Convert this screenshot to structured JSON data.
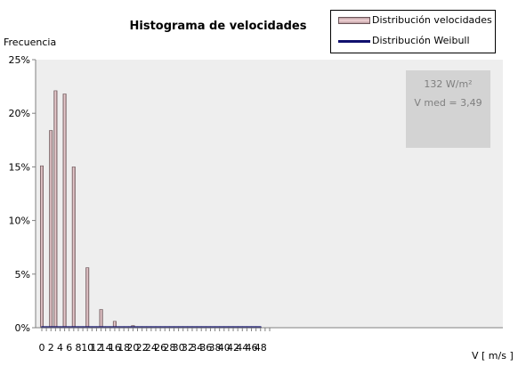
{
  "chart_data": {
    "type": "bar",
    "title": "Histograma de velocidades",
    "xlabel": "V [ m/s ]",
    "ylabel": "Frecuencia",
    "x_ticks": [
      0,
      2,
      4,
      6,
      8,
      10,
      12,
      14,
      16,
      18,
      20,
      22,
      24,
      26,
      28,
      30,
      32,
      34,
      36,
      38,
      40,
      42,
      44,
      46,
      48
    ],
    "y_ticks": [
      "0%",
      "5%",
      "10%",
      "15%",
      "20%",
      "25%"
    ],
    "xlim": [
      -0.5,
      50
    ],
    "ylim": [
      0,
      25
    ],
    "grid": false,
    "legend_position": "top-right",
    "series": [
      {
        "name": "Distribución velocidades",
        "type": "bar",
        "x": [
          0,
          2,
          3,
          5,
          7,
          10,
          13,
          16,
          20
        ],
        "values": [
          15.1,
          18.4,
          22.1,
          21.8,
          15.0,
          5.6,
          1.7,
          0.6,
          0.2
        ]
      },
      {
        "name": "Distribución Weibull",
        "type": "line",
        "x": [
          0,
          1,
          2,
          3,
          4,
          5,
          6,
          7,
          8,
          9,
          10,
          11,
          12,
          13,
          14,
          15,
          16,
          17,
          18,
          19,
          20,
          21,
          22,
          23,
          24,
          25,
          26,
          27,
          28,
          29,
          30,
          31,
          32,
          33,
          34,
          35,
          36,
          37,
          38,
          39,
          40,
          41,
          42,
          43,
          44,
          45,
          46,
          47,
          48
        ],
        "values": [
          0,
          0,
          0,
          0,
          0,
          0,
          0,
          0,
          0,
          0,
          0,
          0,
          0,
          0,
          0,
          0,
          0,
          0,
          0,
          0,
          0,
          0,
          0,
          0,
          0,
          0,
          0,
          0,
          0,
          0,
          0,
          0,
          0,
          0,
          0,
          0,
          0,
          0,
          0,
          0,
          0,
          0,
          0,
          0,
          0,
          0,
          0,
          0,
          0
        ]
      }
    ],
    "annotations": [
      "132 W/m²",
      "V med = 3,49"
    ]
  },
  "colors": {
    "plot_background": "#eeeeee",
    "bar_fill": "#c9aeb2",
    "bar_edge": "#6b5558",
    "weibull_line": "#10106e",
    "info_box": "#d3d3d3",
    "info_text": "#7f7f7f"
  }
}
